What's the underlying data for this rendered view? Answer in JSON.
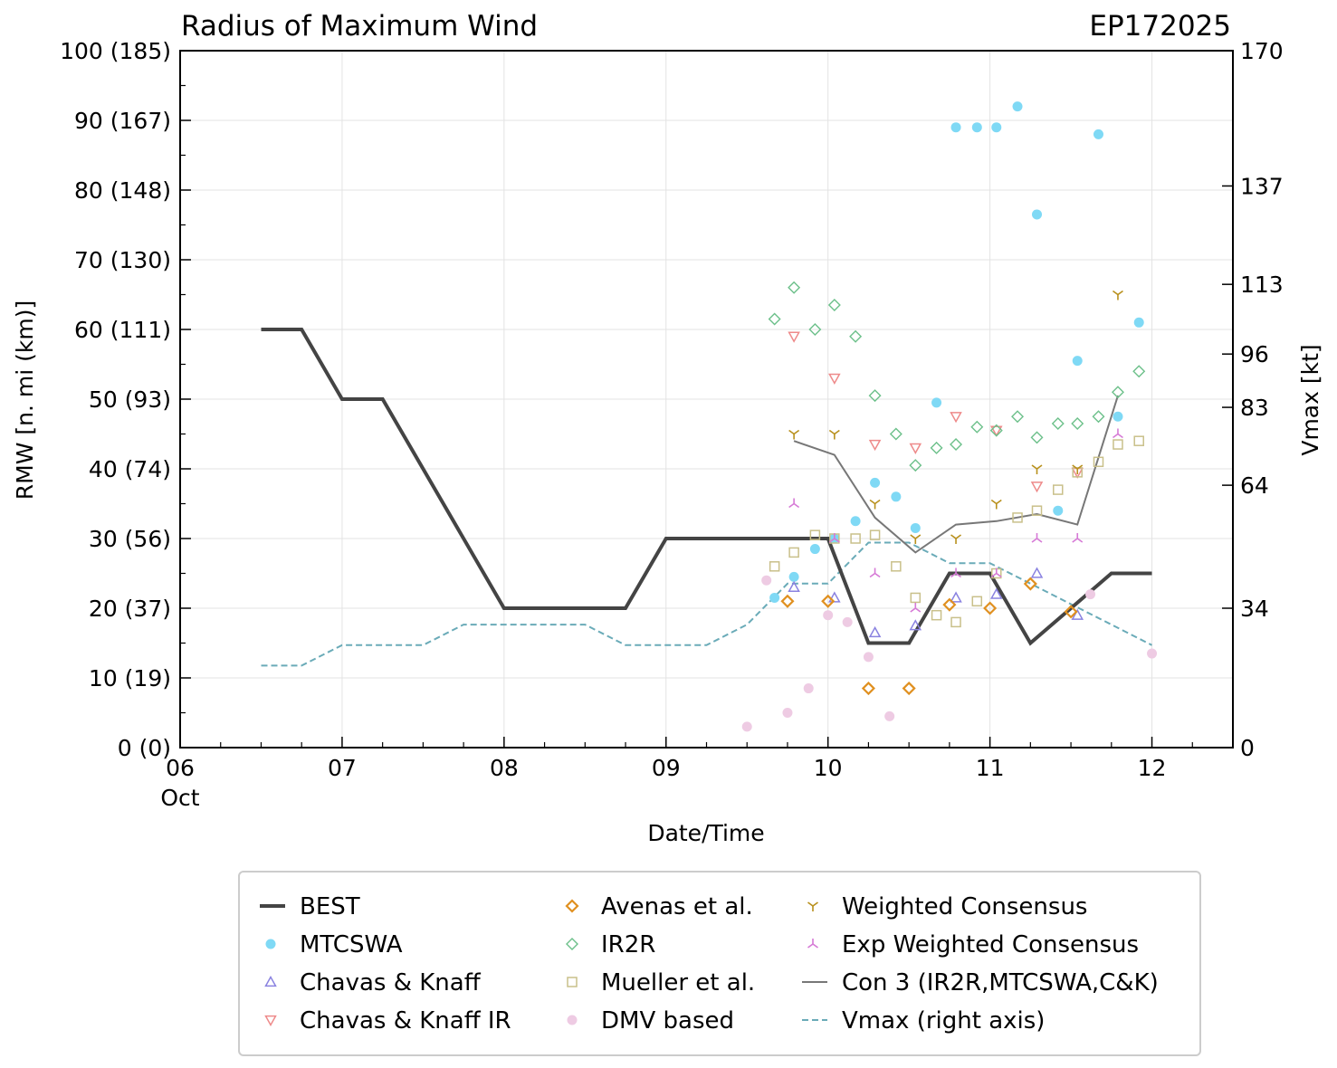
{
  "chart_data": {
    "type": "scatter",
    "title": "Radius of Maximum Wind",
    "storm_id": "EP172025",
    "xlabel": "Date/Time",
    "ylabel_left": "RMW [n. mi (km)]",
    "ylabel_right": "Vmax [kt]",
    "x_unit": "days since 06 Oct 00Z",
    "xlim": [
      0,
      6.5
    ],
    "ylim_left": [
      0,
      100
    ],
    "ylim_right": [
      0,
      170
    ],
    "x_ticks": [
      {
        "x": 0,
        "label": "06",
        "sublabel": "Oct"
      },
      {
        "x": 1,
        "label": "07"
      },
      {
        "x": 2,
        "label": "08"
      },
      {
        "x": 3,
        "label": "09"
      },
      {
        "x": 4,
        "label": "10"
      },
      {
        "x": 5,
        "label": "11"
      },
      {
        "x": 6,
        "label": "12"
      }
    ],
    "y_ticks_left": [
      {
        "y": 0,
        "label": "0 (0)"
      },
      {
        "y": 10,
        "label": "10 (19)"
      },
      {
        "y": 20,
        "label": "20 (37)"
      },
      {
        "y": 30,
        "label": "30 (56)"
      },
      {
        "y": 40,
        "label": "40 (74)"
      },
      {
        "y": 50,
        "label": "50 (93)"
      },
      {
        "y": 60,
        "label": "60 (111)"
      },
      {
        "y": 70,
        "label": "70 (130)"
      },
      {
        "y": 80,
        "label": "80 (148)"
      },
      {
        "y": 90,
        "label": "90 (167)"
      },
      {
        "y": 100,
        "label": "100 (185)"
      }
    ],
    "y_ticks_right": [
      {
        "y": 0,
        "label": "0"
      },
      {
        "y": 34,
        "label": "34"
      },
      {
        "y": 64,
        "label": "64"
      },
      {
        "y": 83,
        "label": "83"
      },
      {
        "y": 96,
        "label": "96"
      },
      {
        "y": 113,
        "label": "113"
      },
      {
        "y": 137,
        "label": "137"
      },
      {
        "y": 170,
        "label": "170"
      }
    ],
    "grid": true,
    "legend_position": "bottom",
    "series": [
      {
        "name": "BEST",
        "kind": "line",
        "color": "#444444",
        "points": [
          [
            0.5,
            60
          ],
          [
            0.75,
            60
          ],
          [
            1.0,
            50
          ],
          [
            1.25,
            50
          ],
          [
            1.5,
            40
          ],
          [
            2.0,
            20
          ],
          [
            2.25,
            20
          ],
          [
            2.5,
            20
          ],
          [
            2.75,
            20
          ],
          [
            3.0,
            30
          ],
          [
            3.25,
            30
          ],
          [
            3.5,
            30
          ],
          [
            3.75,
            30
          ],
          [
            4.0,
            30
          ],
          [
            4.25,
            15
          ],
          [
            4.5,
            15
          ],
          [
            4.75,
            25
          ],
          [
            5.0,
            25
          ],
          [
            5.25,
            15
          ],
          [
            5.5,
            20
          ],
          [
            5.75,
            25
          ],
          [
            6.0,
            25
          ]
        ]
      },
      {
        "name": "MTCSWA",
        "kind": "marker",
        "marker": "circle",
        "color": "#7fd9f5",
        "points": [
          [
            3.67,
            21.5
          ],
          [
            3.79,
            24.5
          ],
          [
            3.92,
            28.5
          ],
          [
            4.04,
            30
          ],
          [
            4.17,
            32.5
          ],
          [
            4.29,
            38
          ],
          [
            4.42,
            36
          ],
          [
            4.54,
            31.5
          ],
          [
            4.67,
            49.5
          ],
          [
            4.79,
            89
          ],
          [
            4.92,
            89
          ],
          [
            5.04,
            89
          ],
          [
            5.17,
            92
          ],
          [
            5.29,
            76.5
          ],
          [
            5.42,
            34
          ],
          [
            5.54,
            55.5
          ],
          [
            5.67,
            88
          ],
          [
            5.79,
            47.5
          ],
          [
            5.92,
            61
          ]
        ]
      },
      {
        "name": "Chavas & Knaff",
        "kind": "marker",
        "marker": "triangle-up",
        "color": "#8a82e0",
        "points": [
          [
            3.79,
            23
          ],
          [
            4.04,
            21.5
          ],
          [
            4.29,
            16.5
          ],
          [
            4.54,
            17.5
          ],
          [
            4.79,
            21.5
          ],
          [
            5.04,
            22
          ],
          [
            5.29,
            25
          ],
          [
            5.54,
            19
          ]
        ]
      },
      {
        "name": "Chavas & Knaff IR",
        "kind": "marker",
        "marker": "triangle-down",
        "color": "#ee8a8a",
        "points": [
          [
            3.79,
            59
          ],
          [
            4.04,
            53
          ],
          [
            4.29,
            43.5
          ],
          [
            4.54,
            43
          ],
          [
            4.79,
            47.5
          ],
          [
            5.04,
            45.5
          ],
          [
            5.29,
            37.5
          ],
          [
            5.54,
            39.5
          ]
        ]
      },
      {
        "name": "Avenas et al.",
        "kind": "marker",
        "marker": "diamond",
        "color": "#e09020",
        "points": [
          [
            3.75,
            21
          ],
          [
            4.0,
            21
          ],
          [
            4.25,
            8.5
          ],
          [
            4.5,
            8.5
          ],
          [
            4.75,
            20.5
          ],
          [
            5.0,
            20
          ],
          [
            5.25,
            23.5
          ],
          [
            5.5,
            19.5
          ]
        ]
      },
      {
        "name": "IR2R",
        "kind": "marker",
        "marker": "diamond-open",
        "color": "#6cc08a",
        "points": [
          [
            3.67,
            61.5
          ],
          [
            3.79,
            66
          ],
          [
            3.92,
            60
          ],
          [
            4.04,
            63.5
          ],
          [
            4.17,
            59
          ],
          [
            4.29,
            50.5
          ],
          [
            4.42,
            45
          ],
          [
            4.54,
            40.5
          ],
          [
            4.67,
            43
          ],
          [
            4.79,
            43.5
          ],
          [
            4.92,
            46
          ],
          [
            5.04,
            45.5
          ],
          [
            5.17,
            47.5
          ],
          [
            5.29,
            44.5
          ],
          [
            5.42,
            46.5
          ],
          [
            5.54,
            46.5
          ],
          [
            5.67,
            47.5
          ],
          [
            5.79,
            51
          ],
          [
            5.92,
            54
          ]
        ]
      },
      {
        "name": "Mueller et al.",
        "kind": "marker",
        "marker": "square",
        "color": "#c9c08a",
        "points": [
          [
            3.67,
            26
          ],
          [
            3.79,
            28
          ],
          [
            3.92,
            30.5
          ],
          [
            4.04,
            30
          ],
          [
            4.17,
            30
          ],
          [
            4.29,
            30.5
          ],
          [
            4.42,
            26
          ],
          [
            4.54,
            21.5
          ],
          [
            4.67,
            19
          ],
          [
            4.79,
            18
          ],
          [
            4.92,
            21
          ],
          [
            5.04,
            25
          ],
          [
            5.17,
            33
          ],
          [
            5.29,
            34
          ],
          [
            5.42,
            37
          ],
          [
            5.54,
            39.5
          ],
          [
            5.67,
            41
          ],
          [
            5.79,
            43.5
          ],
          [
            5.92,
            44
          ]
        ]
      },
      {
        "name": "DMV based",
        "kind": "marker",
        "marker": "circle",
        "color": "#eecbe3",
        "points": [
          [
            3.5,
            3
          ],
          [
            3.62,
            24
          ],
          [
            3.75,
            5
          ],
          [
            3.88,
            8.5
          ],
          [
            4.0,
            19
          ],
          [
            4.12,
            18
          ],
          [
            4.25,
            13
          ],
          [
            4.38,
            4.5
          ],
          [
            5.62,
            22
          ],
          [
            6.0,
            13.5
          ]
        ]
      },
      {
        "name": "Weighted Consensus",
        "kind": "marker",
        "marker": "tri-down",
        "color": "#b8901c",
        "points": [
          [
            3.79,
            45
          ],
          [
            4.04,
            45
          ],
          [
            4.29,
            35
          ],
          [
            4.54,
            30
          ],
          [
            4.79,
            30
          ],
          [
            5.04,
            35
          ],
          [
            5.29,
            40
          ],
          [
            5.54,
            40
          ],
          [
            5.79,
            65
          ]
        ]
      },
      {
        "name": "Exp Weighted Consensus",
        "kind": "marker",
        "marker": "tri-up",
        "color": "#d67ad6",
        "points": [
          [
            3.79,
            35
          ],
          [
            4.04,
            30
          ],
          [
            4.29,
            25
          ],
          [
            4.54,
            20
          ],
          [
            4.79,
            25
          ],
          [
            5.04,
            25
          ],
          [
            5.29,
            30
          ],
          [
            5.54,
            30
          ],
          [
            5.79,
            45
          ]
        ]
      },
      {
        "name": "Con 3 (IR2R,MTCSWA,C&K)",
        "kind": "line",
        "color": "#777777",
        "points": [
          [
            3.79,
            44
          ],
          [
            4.04,
            42
          ],
          [
            4.29,
            33
          ],
          [
            4.54,
            28
          ],
          [
            4.79,
            32
          ],
          [
            5.04,
            32.5
          ],
          [
            5.29,
            33.5
          ],
          [
            5.54,
            32
          ],
          [
            5.79,
            50.5
          ]
        ]
      },
      {
        "name": "Vmax (right axis)",
        "kind": "dashed-line",
        "axis": "right",
        "color": "#6aabb8",
        "points": [
          [
            0.5,
            20
          ],
          [
            0.75,
            20
          ],
          [
            1.0,
            25
          ],
          [
            1.25,
            25
          ],
          [
            1.5,
            25
          ],
          [
            1.75,
            30
          ],
          [
            2.0,
            30
          ],
          [
            2.25,
            30
          ],
          [
            2.5,
            30
          ],
          [
            2.75,
            25
          ],
          [
            3.0,
            25
          ],
          [
            3.25,
            25
          ],
          [
            3.5,
            30
          ],
          [
            3.75,
            40
          ],
          [
            4.0,
            40
          ],
          [
            4.25,
            50
          ],
          [
            4.5,
            50
          ],
          [
            4.75,
            45
          ],
          [
            5.0,
            45
          ],
          [
            5.25,
            40
          ],
          [
            5.5,
            35
          ],
          [
            5.75,
            30
          ],
          [
            6.0,
            25
          ]
        ]
      }
    ],
    "legend": [
      {
        "label": "BEST",
        "series": 0
      },
      {
        "label": "MTCSWA",
        "series": 1
      },
      {
        "label": "Chavas & Knaff",
        "series": 2
      },
      {
        "label": "Chavas & Knaff IR",
        "series": 3
      },
      {
        "label": "Avenas et al.",
        "series": 4
      },
      {
        "label": "IR2R",
        "series": 5
      },
      {
        "label": "Mueller et al.",
        "series": 6
      },
      {
        "label": "DMV based",
        "series": 7
      },
      {
        "label": "Weighted Consensus",
        "series": 8
      },
      {
        "label": "Exp Weighted Consensus",
        "series": 9
      },
      {
        "label": "Con 3 (IR2R,MTCSWA,C&K)",
        "series": 10
      },
      {
        "label": "Vmax (right axis)",
        "series": 11
      }
    ]
  }
}
